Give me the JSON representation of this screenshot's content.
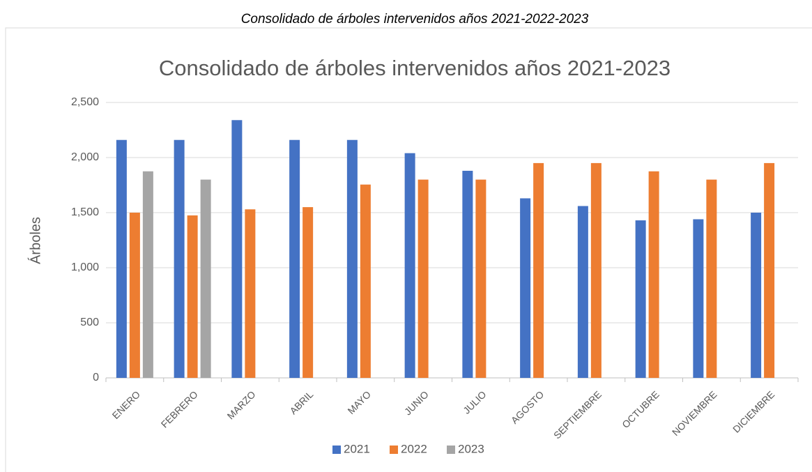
{
  "caption": "Consolidado de árboles intervenidos años 2021-2022-2023",
  "chart_data": {
    "type": "bar",
    "title": "Consolidado de árboles intervenidos años 2021-2023",
    "y_label": "Árboles",
    "categories": [
      "ENERO",
      "FEBRERO",
      "MARZO",
      "ABRIL",
      "MAYO",
      "JUNIO",
      "JULIO",
      "AGOSTO",
      "SEPTIEMBRE",
      "OCTUBRE",
      "NOVIEMBRE",
      "DICIEMBRE"
    ],
    "series": [
      {
        "name": "2021",
        "color": "#4472c4",
        "values": [
          2160,
          2160,
          2340,
          2160,
          2160,
          2040,
          1880,
          1630,
          1560,
          1430,
          1440,
          1500
        ]
      },
      {
        "name": "2022",
        "color": "#ed7d31",
        "values": [
          1500,
          1475,
          1530,
          1550,
          1755,
          1800,
          1800,
          1950,
          1950,
          1875,
          1800,
          1950
        ]
      },
      {
        "name": "2023",
        "color": "#a5a5a5",
        "values": [
          1875,
          1800,
          null,
          null,
          null,
          null,
          null,
          null,
          null,
          null,
          null,
          null
        ]
      }
    ],
    "ylim": [
      0,
      2500
    ],
    "yticks": [
      0,
      500,
      {
        "value": 1000,
        "label": "1,000"
      },
      {
        "value": 1500,
        "label": "1,500"
      },
      {
        "value": 2000,
        "label": "2,000"
      },
      {
        "value": 2500,
        "label": "2,500"
      }
    ],
    "grid": true,
    "legend": "bottom"
  }
}
